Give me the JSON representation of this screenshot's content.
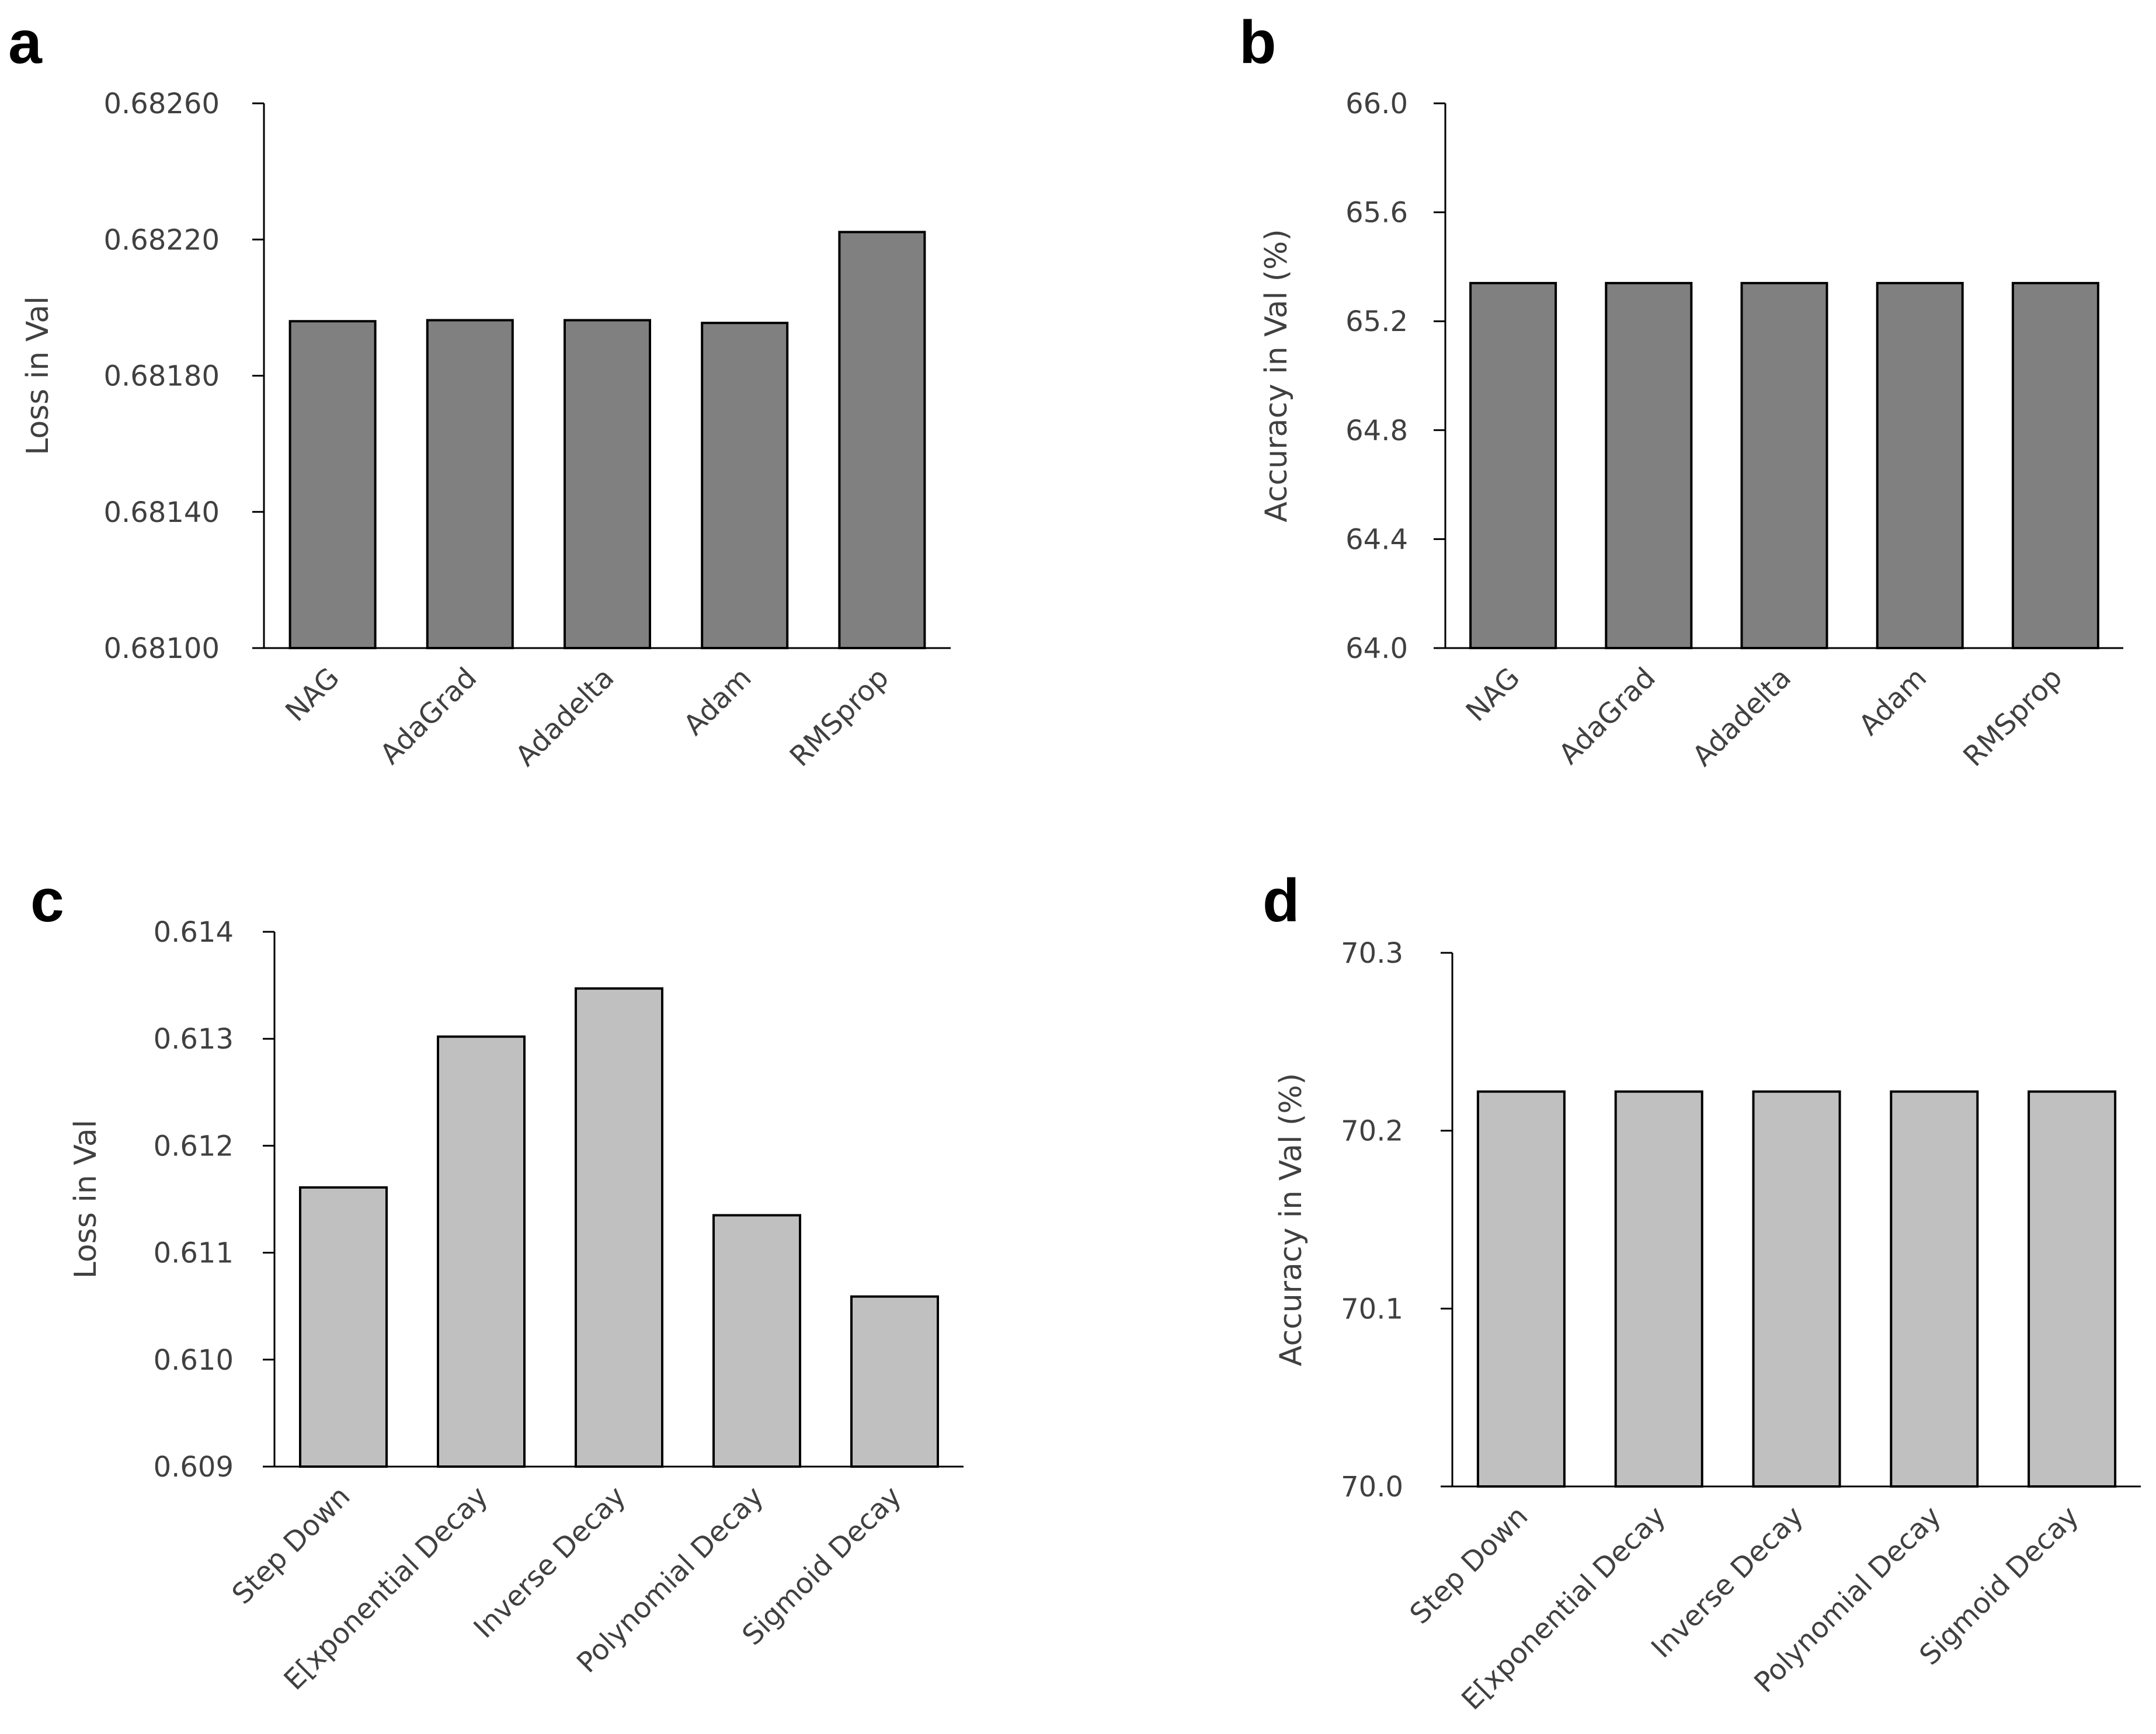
{
  "chart_data": [
    {
      "panel": "a",
      "type": "bar",
      "categories": [
        "NAG",
        "AdaGrad",
        "Adadelta",
        "Adam",
        "RMSprop"
      ],
      "values": [
        0.68196,
        0.681963,
        0.681963,
        0.681955,
        0.682222
      ],
      "ylabel": "Loss in Val",
      "xlabel": "",
      "ylim": [
        0.681,
        0.6826
      ],
      "yticks": [
        "0.68100",
        "0.68140",
        "0.68180",
        "0.68220",
        "0.68260"
      ],
      "bar_color": "#808080",
      "grid": false
    },
    {
      "panel": "b",
      "type": "bar",
      "categories": [
        "NAG",
        "AdaGrad",
        "Adadelta",
        "Adam",
        "RMSprop"
      ],
      "values": [
        65.34,
        65.34,
        65.34,
        65.34,
        65.34
      ],
      "ylabel": "Accuracy in Val (%)",
      "xlabel": "",
      "ylim": [
        64.0,
        66.0
      ],
      "yticks": [
        "64.0",
        "64.4",
        "64.8",
        "65.2",
        "65.6",
        "66.0"
      ],
      "bar_color": "#808080",
      "grid": false
    },
    {
      "panel": "c",
      "type": "bar",
      "categories": [
        "Step Down",
        "E[xponential Decay",
        "Inverse Decay",
        "Polynomial Decay",
        "Sigmoid Decay"
      ],
      "values": [
        0.61161,
        0.61302,
        0.61347,
        0.61135,
        0.61059
      ],
      "ylabel": "Loss in Val",
      "xlabel": "",
      "ylim": [
        0.609,
        0.614
      ],
      "yticks": [
        "0.609",
        "0.610",
        "0.611",
        "0.612",
        "0.613",
        "0.614"
      ],
      "bar_color": "#c0c0c0",
      "grid": false
    },
    {
      "panel": "d",
      "type": "bar",
      "categories": [
        "Step Down",
        "E[xponential Decay",
        "Inverse Decay",
        "Polynomial Decay",
        "Sigmoid Decay"
      ],
      "values": [
        70.222,
        70.222,
        70.222,
        70.222,
        70.222
      ],
      "ylabel": "Accuracy in Val (%)",
      "xlabel": "",
      "ylim": [
        70.0,
        70.3
      ],
      "yticks": [
        "70.0",
        "70.1",
        "70.2",
        "70.3"
      ],
      "bar_color": "#c0c0c0",
      "grid": false
    }
  ]
}
